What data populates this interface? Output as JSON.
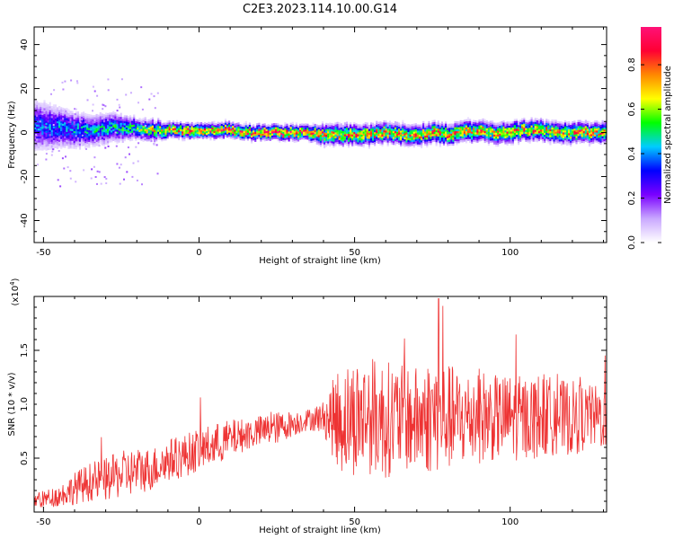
{
  "figure": {
    "title": "C2E3.2023.114.10.00.G14"
  },
  "chart_data": [
    {
      "type": "heatmap",
      "title": "",
      "xlabel": "Height of straight line (km)",
      "ylabel": "Frequency (Hz)",
      "xlim": [
        -53,
        131
      ],
      "ylim": [
        -50,
        48
      ],
      "xticks": [
        -50,
        0,
        50,
        100
      ],
      "yticks": [
        -40,
        -20,
        0,
        20,
        40
      ],
      "colorbar": {
        "label": "Normalized spectral amplitude",
        "range": [
          0,
          0.97
        ],
        "ticks": [
          0.0,
          0.2,
          0.4,
          0.6,
          0.8
        ],
        "colormap": [
          "#ffffff",
          "#c9a8ff",
          "#7a00ff",
          "#0000ff",
          "#00ccff",
          "#00ff00",
          "#ffff00",
          "#ff8800",
          "#ff0033",
          "#ff1177"
        ]
      },
      "ridge": {
        "x": [
          -53,
          -45,
          -40,
          -35,
          -30,
          -25,
          -20,
          -15,
          -10,
          -5,
          0,
          5,
          10,
          15,
          20,
          25,
          30,
          35,
          40,
          45,
          50,
          55,
          60,
          65,
          70,
          75,
          80,
          85,
          90,
          95,
          100,
          105,
          110,
          115,
          120,
          125,
          131
        ],
        "center_hz": [
          3,
          2,
          1,
          1,
          2,
          2,
          2,
          1,
          1,
          1,
          1,
          1,
          1,
          0,
          0,
          0,
          0,
          0,
          -1,
          -1,
          -1,
          -1,
          0,
          -1,
          -1,
          0,
          -1,
          0,
          1,
          0,
          0,
          1,
          1,
          0,
          0,
          0,
          0
        ],
        "halfwidth_hz": [
          10,
          8,
          7,
          6,
          6,
          5,
          4,
          4,
          3,
          3,
          3,
          3,
          3,
          3,
          3,
          3,
          3,
          3,
          4,
          4,
          4,
          4,
          4,
          4,
          4,
          4,
          4,
          4,
          4,
          4,
          4,
          4,
          4,
          4,
          4,
          4,
          4
        ],
        "peak_amplitude": [
          0.4,
          0.45,
          0.45,
          0.5,
          0.5,
          0.55,
          0.6,
          0.75,
          0.85,
          0.9,
          0.9,
          0.9,
          0.92,
          0.92,
          0.95,
          0.95,
          0.95,
          0.9,
          0.85,
          0.85,
          0.85,
          0.85,
          0.85,
          0.85,
          0.85,
          0.85,
          0.85,
          0.85,
          0.85,
          0.85,
          0.85,
          0.85,
          0.85,
          0.85,
          0.85,
          0.85,
          0.85
        ]
      }
    },
    {
      "type": "line",
      "title": "",
      "xlabel": "Height of straight line (km)",
      "ylabel": "SNR (10 * v/v)",
      "y_multiplier_label": "(x10",
      "y_multiplier_exponent": "4",
      "xlim": [
        -53,
        131
      ],
      "ylim": [
        0,
        2.0
      ],
      "xticks": [
        -50,
        0,
        50,
        100
      ],
      "yticks": [
        0.5,
        1.0,
        1.5
      ],
      "ytick_labels": [
        "0.5",
        "1.0",
        "1.5"
      ],
      "series": [
        {
          "color": "#ee3333",
          "x": [
            -53,
            -50,
            -45,
            -40,
            -35,
            -30,
            -25,
            -20,
            -15,
            -10,
            -5,
            0,
            5,
            10,
            15,
            20,
            25,
            30,
            35,
            40,
            45,
            50,
            55,
            60,
            65,
            70,
            75,
            80,
            85,
            90,
            95,
            100,
            105,
            110,
            115,
            120,
            125,
            131
          ],
          "mean": [
            0.1,
            0.12,
            0.15,
            0.22,
            0.28,
            0.3,
            0.35,
            0.38,
            0.4,
            0.48,
            0.52,
            0.58,
            0.62,
            0.68,
            0.72,
            0.75,
            0.78,
            0.82,
            0.86,
            0.88,
            0.86,
            0.88,
            0.9,
            0.86,
            0.88,
            0.85,
            0.9,
            0.88,
            0.86,
            0.9,
            0.87,
            0.88,
            0.86,
            0.9,
            0.88,
            0.87,
            0.88,
            0.88
          ],
          "spread": [
            0.08,
            0.08,
            0.1,
            0.15,
            0.18,
            0.2,
            0.22,
            0.22,
            0.2,
            0.2,
            0.2,
            0.2,
            0.2,
            0.18,
            0.15,
            0.15,
            0.15,
            0.12,
            0.1,
            0.15,
            0.5,
            0.55,
            0.55,
            0.55,
            0.5,
            0.5,
            0.55,
            0.5,
            0.45,
            0.45,
            0.4,
            0.4,
            0.4,
            0.4,
            0.35,
            0.35,
            0.3,
            0.3
          ],
          "max_value": 1.98,
          "max_at_x": 77
        }
      ]
    }
  ]
}
